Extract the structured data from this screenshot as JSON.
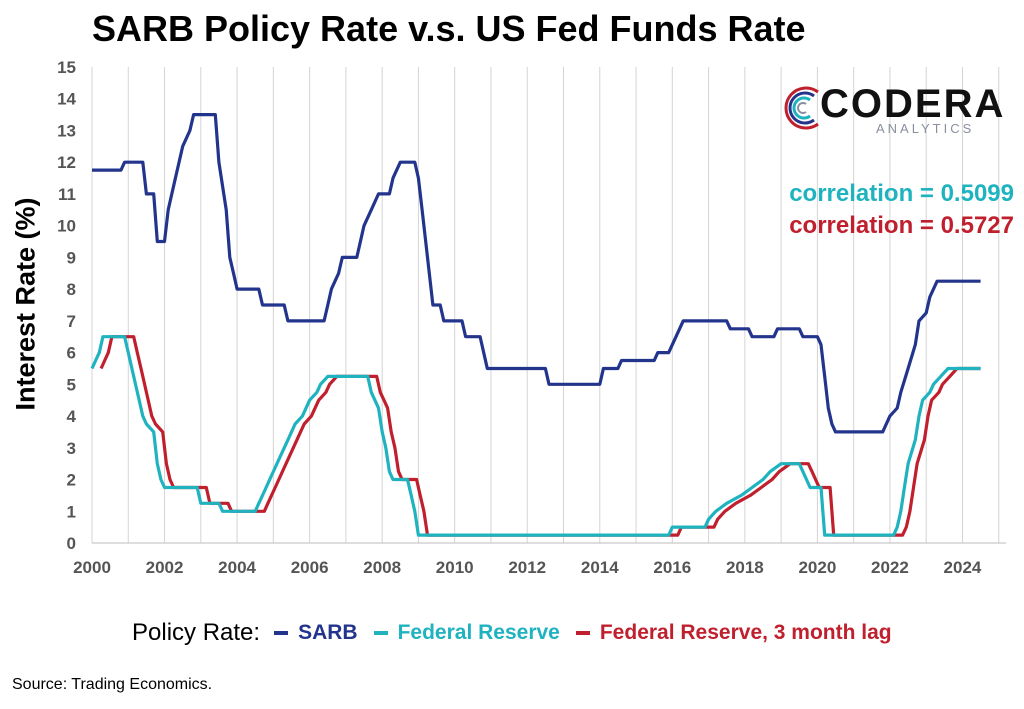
{
  "title": "SARB Policy Rate v.s. US Fed Funds Rate",
  "source": "Source: Trading Economics.",
  "logo": {
    "word": "CODERA",
    "sub": "ANALYTICS",
    "icon": "codera-c-logo"
  },
  "correlations": [
    {
      "text": "correlation = 0.5099",
      "color": "#1fb3c0"
    },
    {
      "text": "correlation = 0.5727",
      "color": "#c0202d"
    }
  ],
  "legend": {
    "title": "Policy Rate:",
    "items": [
      {
        "label": "SARB",
        "color": "#23348c"
      },
      {
        "label": "Federal Reserve",
        "color": "#1fb3c0"
      },
      {
        "label": "Federal Reserve, 3 month lag",
        "color": "#c0202d"
      }
    ]
  },
  "chart_data": {
    "type": "line",
    "title": "SARB Policy Rate v.s. US Fed Funds Rate",
    "xlabel": "",
    "ylabel": "Interest Rate (%)",
    "xlim": [
      2000,
      2025.2
    ],
    "ylim": [
      0,
      15
    ],
    "x_ticks": [
      "2000",
      "2002",
      "2004",
      "2006",
      "2008",
      "2010",
      "2012",
      "2014",
      "2016",
      "2018",
      "2020",
      "2022",
      "2024"
    ],
    "y_ticks": [
      "0",
      "1",
      "2",
      "3",
      "4",
      "5",
      "6",
      "7",
      "8",
      "9",
      "10",
      "11",
      "12",
      "13",
      "14",
      "15"
    ],
    "grid": "vertical",
    "legend_position": "bottom",
    "series": [
      {
        "name": "SARB",
        "color": "#23348c",
        "points": [
          [
            2000.0,
            11.75
          ],
          [
            2000.8,
            11.75
          ],
          [
            2000.9,
            12.0
          ],
          [
            2001.4,
            12.0
          ],
          [
            2001.5,
            11.0
          ],
          [
            2001.7,
            11.0
          ],
          [
            2001.8,
            9.5
          ],
          [
            2002.0,
            9.5
          ],
          [
            2002.1,
            10.5
          ],
          [
            2002.3,
            11.5
          ],
          [
            2002.5,
            12.5
          ],
          [
            2002.7,
            13.0
          ],
          [
            2002.8,
            13.5
          ],
          [
            2003.4,
            13.5
          ],
          [
            2003.5,
            12.0
          ],
          [
            2003.7,
            10.5
          ],
          [
            2003.8,
            9.0
          ],
          [
            2003.9,
            8.5
          ],
          [
            2004.0,
            8.0
          ],
          [
            2004.6,
            8.0
          ],
          [
            2004.7,
            7.5
          ],
          [
            2005.3,
            7.5
          ],
          [
            2005.4,
            7.0
          ],
          [
            2006.4,
            7.0
          ],
          [
            2006.5,
            7.5
          ],
          [
            2006.6,
            8.0
          ],
          [
            2006.8,
            8.5
          ],
          [
            2006.9,
            9.0
          ],
          [
            2007.3,
            9.0
          ],
          [
            2007.4,
            9.5
          ],
          [
            2007.5,
            10.0
          ],
          [
            2007.7,
            10.5
          ],
          [
            2007.9,
            11.0
          ],
          [
            2008.2,
            11.0
          ],
          [
            2008.3,
            11.5
          ],
          [
            2008.5,
            12.0
          ],
          [
            2008.9,
            12.0
          ],
          [
            2009.0,
            11.5
          ],
          [
            2009.1,
            10.5
          ],
          [
            2009.2,
            9.5
          ],
          [
            2009.3,
            8.5
          ],
          [
            2009.4,
            7.5
          ],
          [
            2009.6,
            7.5
          ],
          [
            2009.7,
            7.0
          ],
          [
            2010.2,
            7.0
          ],
          [
            2010.3,
            6.5
          ],
          [
            2010.7,
            6.5
          ],
          [
            2010.8,
            6.0
          ],
          [
            2010.9,
            5.5
          ],
          [
            2012.5,
            5.5
          ],
          [
            2012.6,
            5.0
          ],
          [
            2014.0,
            5.0
          ],
          [
            2014.1,
            5.5
          ],
          [
            2014.5,
            5.5
          ],
          [
            2014.6,
            5.75
          ],
          [
            2015.5,
            5.75
          ],
          [
            2015.6,
            6.0
          ],
          [
            2015.9,
            6.0
          ],
          [
            2016.0,
            6.25
          ],
          [
            2016.2,
            6.75
          ],
          [
            2016.3,
            7.0
          ],
          [
            2017.5,
            7.0
          ],
          [
            2017.6,
            6.75
          ],
          [
            2018.1,
            6.75
          ],
          [
            2018.2,
            6.5
          ],
          [
            2018.8,
            6.5
          ],
          [
            2018.9,
            6.75
          ],
          [
            2019.5,
            6.75
          ],
          [
            2019.6,
            6.5
          ],
          [
            2020.0,
            6.5
          ],
          [
            2020.1,
            6.25
          ],
          [
            2020.2,
            5.25
          ],
          [
            2020.3,
            4.25
          ],
          [
            2020.4,
            3.75
          ],
          [
            2020.5,
            3.5
          ],
          [
            2021.8,
            3.5
          ],
          [
            2021.9,
            3.75
          ],
          [
            2022.0,
            4.0
          ],
          [
            2022.2,
            4.25
          ],
          [
            2022.3,
            4.75
          ],
          [
            2022.5,
            5.5
          ],
          [
            2022.7,
            6.25
          ],
          [
            2022.8,
            7.0
          ],
          [
            2023.0,
            7.25
          ],
          [
            2023.1,
            7.75
          ],
          [
            2023.3,
            8.25
          ],
          [
            2024.5,
            8.25
          ]
        ]
      },
      {
        "name": "Federal Reserve",
        "color": "#1fb3c0",
        "points": [
          [
            2000.0,
            5.5
          ],
          [
            2000.1,
            5.75
          ],
          [
            2000.2,
            6.0
          ],
          [
            2000.3,
            6.5
          ],
          [
            2000.9,
            6.5
          ],
          [
            2001.0,
            6.0
          ],
          [
            2001.1,
            5.5
          ],
          [
            2001.2,
            5.0
          ],
          [
            2001.3,
            4.5
          ],
          [
            2001.4,
            4.0
          ],
          [
            2001.5,
            3.75
          ],
          [
            2001.7,
            3.5
          ],
          [
            2001.8,
            2.5
          ],
          [
            2001.9,
            2.0
          ],
          [
            2002.0,
            1.75
          ],
          [
            2002.9,
            1.75
          ],
          [
            2003.0,
            1.25
          ],
          [
            2003.5,
            1.25
          ],
          [
            2003.6,
            1.0
          ],
          [
            2004.5,
            1.0
          ],
          [
            2004.6,
            1.25
          ],
          [
            2004.7,
            1.5
          ],
          [
            2004.8,
            1.75
          ],
          [
            2005.0,
            2.25
          ],
          [
            2005.2,
            2.75
          ],
          [
            2005.4,
            3.25
          ],
          [
            2005.6,
            3.75
          ],
          [
            2005.8,
            4.0
          ],
          [
            2006.0,
            4.5
          ],
          [
            2006.2,
            4.75
          ],
          [
            2006.3,
            5.0
          ],
          [
            2006.5,
            5.25
          ],
          [
            2007.6,
            5.25
          ],
          [
            2007.7,
            4.75
          ],
          [
            2007.8,
            4.5
          ],
          [
            2007.9,
            4.25
          ],
          [
            2008.0,
            3.5
          ],
          [
            2008.1,
            3.0
          ],
          [
            2008.2,
            2.25
          ],
          [
            2008.3,
            2.0
          ],
          [
            2008.7,
            2.0
          ],
          [
            2008.8,
            1.5
          ],
          [
            2008.9,
            1.0
          ],
          [
            2009.0,
            0.25
          ],
          [
            2015.9,
            0.25
          ],
          [
            2016.0,
            0.5
          ],
          [
            2016.9,
            0.5
          ],
          [
            2017.0,
            0.75
          ],
          [
            2017.2,
            1.0
          ],
          [
            2017.5,
            1.25
          ],
          [
            2017.9,
            1.5
          ],
          [
            2018.2,
            1.75
          ],
          [
            2018.5,
            2.0
          ],
          [
            2018.7,
            2.25
          ],
          [
            2019.0,
            2.5
          ],
          [
            2019.5,
            2.5
          ],
          [
            2019.6,
            2.25
          ],
          [
            2019.8,
            1.75
          ],
          [
            2020.1,
            1.75
          ],
          [
            2020.2,
            0.25
          ],
          [
            2022.1,
            0.25
          ],
          [
            2022.2,
            0.5
          ],
          [
            2022.3,
            1.0
          ],
          [
            2022.4,
            1.75
          ],
          [
            2022.5,
            2.5
          ],
          [
            2022.7,
            3.25
          ],
          [
            2022.8,
            4.0
          ],
          [
            2022.9,
            4.5
          ],
          [
            2023.1,
            4.75
          ],
          [
            2023.2,
            5.0
          ],
          [
            2023.4,
            5.25
          ],
          [
            2023.6,
            5.5
          ],
          [
            2024.5,
            5.5
          ]
        ]
      },
      {
        "name": "Federal Reserve, 3 month lag",
        "color": "#c0202d",
        "points": [
          [
            2000.25,
            5.5
          ],
          [
            2000.35,
            5.75
          ],
          [
            2000.45,
            6.0
          ],
          [
            2000.55,
            6.5
          ],
          [
            2001.15,
            6.5
          ],
          [
            2001.25,
            6.0
          ],
          [
            2001.35,
            5.5
          ],
          [
            2001.45,
            5.0
          ],
          [
            2001.55,
            4.5
          ],
          [
            2001.65,
            4.0
          ],
          [
            2001.75,
            3.75
          ],
          [
            2001.95,
            3.5
          ],
          [
            2002.05,
            2.5
          ],
          [
            2002.15,
            2.0
          ],
          [
            2002.25,
            1.75
          ],
          [
            2003.15,
            1.75
          ],
          [
            2003.25,
            1.25
          ],
          [
            2003.75,
            1.25
          ],
          [
            2003.85,
            1.0
          ],
          [
            2004.75,
            1.0
          ],
          [
            2004.85,
            1.25
          ],
          [
            2004.95,
            1.5
          ],
          [
            2005.05,
            1.75
          ],
          [
            2005.25,
            2.25
          ],
          [
            2005.45,
            2.75
          ],
          [
            2005.65,
            3.25
          ],
          [
            2005.85,
            3.75
          ],
          [
            2006.05,
            4.0
          ],
          [
            2006.25,
            4.5
          ],
          [
            2006.45,
            4.75
          ],
          [
            2006.55,
            5.0
          ],
          [
            2006.75,
            5.25
          ],
          [
            2007.85,
            5.25
          ],
          [
            2007.95,
            4.75
          ],
          [
            2008.05,
            4.5
          ],
          [
            2008.15,
            4.25
          ],
          [
            2008.25,
            3.5
          ],
          [
            2008.35,
            3.0
          ],
          [
            2008.45,
            2.25
          ],
          [
            2008.55,
            2.0
          ],
          [
            2008.95,
            2.0
          ],
          [
            2009.05,
            1.5
          ],
          [
            2009.15,
            1.0
          ],
          [
            2009.25,
            0.25
          ],
          [
            2016.15,
            0.25
          ],
          [
            2016.25,
            0.5
          ],
          [
            2017.15,
            0.5
          ],
          [
            2017.25,
            0.75
          ],
          [
            2017.45,
            1.0
          ],
          [
            2017.75,
            1.25
          ],
          [
            2018.15,
            1.5
          ],
          [
            2018.45,
            1.75
          ],
          [
            2018.75,
            2.0
          ],
          [
            2018.95,
            2.25
          ],
          [
            2019.25,
            2.5
          ],
          [
            2019.75,
            2.5
          ],
          [
            2019.85,
            2.25
          ],
          [
            2020.05,
            1.75
          ],
          [
            2020.35,
            1.75
          ],
          [
            2020.45,
            0.25
          ],
          [
            2022.35,
            0.25
          ],
          [
            2022.45,
            0.5
          ],
          [
            2022.55,
            1.0
          ],
          [
            2022.65,
            1.75
          ],
          [
            2022.75,
            2.5
          ],
          [
            2022.95,
            3.25
          ],
          [
            2023.05,
            4.0
          ],
          [
            2023.15,
            4.5
          ],
          [
            2023.35,
            4.75
          ],
          [
            2023.45,
            5.0
          ],
          [
            2023.65,
            5.25
          ],
          [
            2023.85,
            5.5
          ],
          [
            2024.5,
            5.5
          ]
        ]
      }
    ]
  }
}
